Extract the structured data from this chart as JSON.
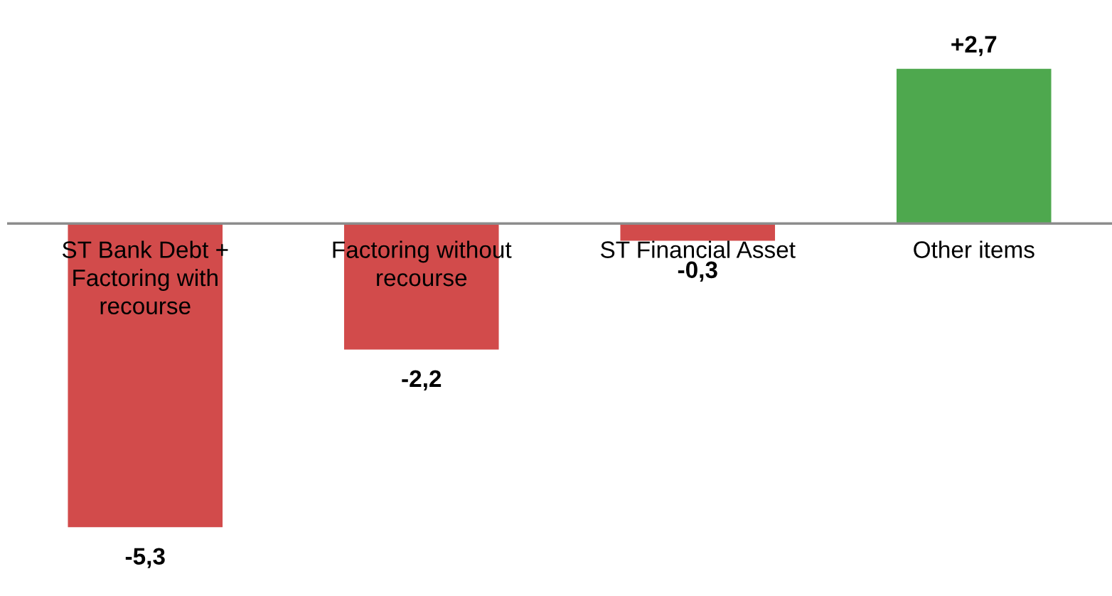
{
  "chart_data": {
    "type": "bar",
    "categories": [
      "ST Bank Debt +\nFactoring with\nrecourse",
      "Factoring without\nrecourse",
      "ST Financial Asset",
      "Other items"
    ],
    "values": [
      -5.3,
      -2.2,
      -0.3,
      2.7
    ],
    "colors": [
      "#d24b4b",
      "#d24b4b",
      "#d24b4b",
      "#4ea84e"
    ],
    "value_labels": [
      "-5,3",
      "-2,2",
      "-0,3",
      "+2,7"
    ],
    "tick_labels": "x"
  }
}
